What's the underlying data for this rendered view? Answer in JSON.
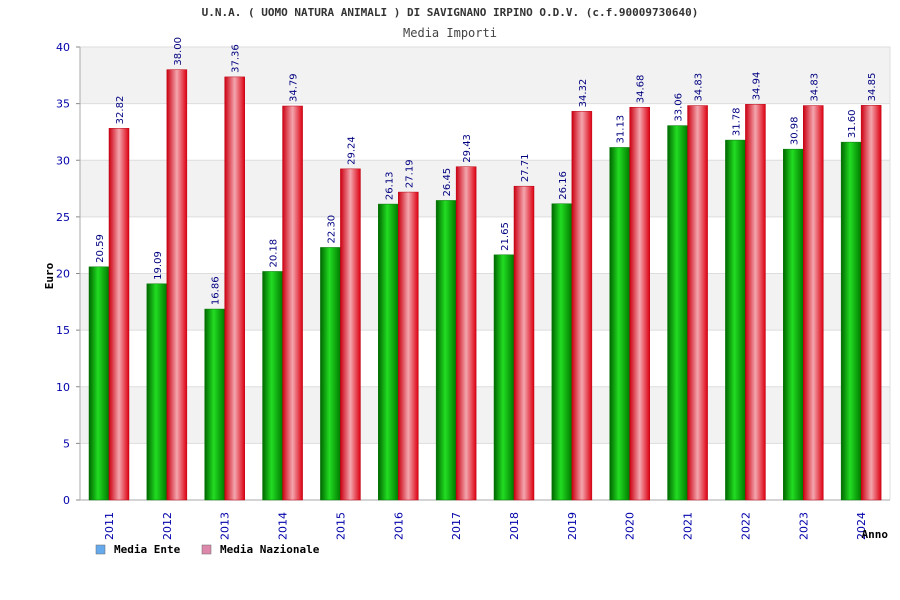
{
  "chart_data": {
    "type": "bar",
    "title": "U.N.A. ( UOMO NATURA ANIMALI ) DI SAVIGNANO IRPINO O.D.V. (c.f.90009730640)",
    "subtitle": "Media Importi",
    "ylabel": "Euro",
    "xlabel": "Anno",
    "ylim": [
      0,
      40
    ],
    "yticks": [
      "0",
      "5",
      "10",
      "15",
      "20",
      "25",
      "30",
      "35",
      "40"
    ],
    "grid": true,
    "legend_position": "bottom-left",
    "categories": [
      "2011",
      "2012",
      "2013",
      "2014",
      "2015",
      "2016",
      "2017",
      "2018",
      "2019",
      "2020",
      "2021",
      "2022",
      "2023",
      "2024"
    ],
    "series": [
      {
        "name": "Media Ente",
        "values": [
          20.59,
          19.09,
          16.86,
          20.18,
          22.3,
          26.13,
          26.45,
          21.65,
          26.16,
          31.13,
          33.06,
          31.78,
          30.98,
          31.6
        ],
        "labels": [
          "20.59",
          "19.09",
          "16.86",
          "20.18",
          "22.30",
          "26.13",
          "26.45",
          "21.65",
          "26.16",
          "31.13",
          "33.06",
          "31.78",
          "30.98",
          "31.60"
        ],
        "bar_color": "#00b000",
        "legend_color": "#66aaee"
      },
      {
        "name": "Media Nazionale",
        "values": [
          32.82,
          38.0,
          37.36,
          34.79,
          29.24,
          27.19,
          29.43,
          27.71,
          34.32,
          34.68,
          34.83,
          34.94,
          34.83,
          34.85
        ],
        "labels": [
          "32.82",
          "38.00",
          "37.36",
          "34.79",
          "29.24",
          "27.19",
          "29.43",
          "27.71",
          "34.32",
          "34.68",
          "34.83",
          "34.94",
          "34.83",
          "34.85"
        ],
        "bar_color": "#ee1122",
        "legend_color": "#dd88aa"
      }
    ]
  }
}
